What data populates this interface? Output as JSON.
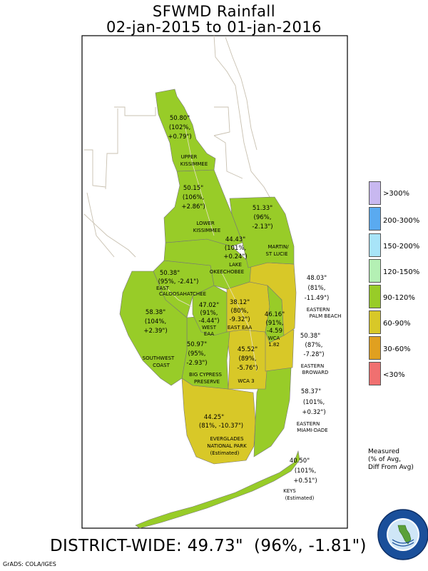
{
  "title": "SFWMD Rainfall",
  "subtitle": "02-jan-2015 to 01-jan-2016",
  "colors": {
    "gt300": "#c8b8f0",
    "r200_300": "#5aaaf0",
    "r150_200": "#a8e4f8",
    "r120_150": "#b4f0b4",
    "r90_120": "#98cc28",
    "r60_90": "#d8c828",
    "r30_60": "#e0a020",
    "lt30": "#f07070",
    "land": "#ffffff",
    "outline": "#b8b0a0"
  },
  "legend": [
    {
      "label": ">300%",
      "color": "#c8b8f0"
    },
    {
      "label": "200-300%",
      "color": "#5aaaf0"
    },
    {
      "label": "150-200%",
      "color": "#a8e4f8"
    },
    {
      "label": "120-150%",
      "color": "#b4f0b4"
    },
    {
      "label": "90-120%",
      "color": "#98cc28"
    },
    {
      "label": "60-90%",
      "color": "#d8c828"
    },
    {
      "label": "30-60%",
      "color": "#e0a020"
    },
    {
      "label": "<30%",
      "color": "#f07070"
    }
  ],
  "measured_note": {
    "line1": "Measured",
    "line2": "(% of Avg,",
    "line3": "Diff From Avg)"
  },
  "regions": {
    "upper_kissimmee": {
      "value": "50.80\"",
      "pct": "(102%,",
      "diff": "+0.79\")",
      "name1": "UPPER",
      "name2": "KISSIMMEE"
    },
    "lower_kissimmee": {
      "value": "50.15\"",
      "pct": "(106%,",
      "diff": "+2.86\")",
      "name1": "LOWER",
      "name2": "KISSIMMEE"
    },
    "martin_st_lucie": {
      "value": "51.33\"",
      "pct": "(96%,",
      "diff": "-2.13\")",
      "name1": "MARTIN/",
      "name2": "ST LUCIE"
    },
    "lake_okeechobee": {
      "value": "44.43\"",
      "pct": "(101%,",
      "diff": "+0.24\")",
      "name1": "LAKE",
      "name2": "OKEECHOBEE"
    },
    "east_caloosahatchee": {
      "value": "50.38\"",
      "pct": "(95%, -2.41\")",
      "name1": "EAST",
      "name2": "CALOOSAHATCHEE"
    },
    "west_eaa": {
      "value": "47.02\"",
      "pct": "(91%,",
      "diff": "-4.44\")",
      "name1": "WEST",
      "name2": "EAA"
    },
    "east_eaa": {
      "value": "38.12\"",
      "pct": "(80%,",
      "diff": "-9.32\")",
      "name1": "EAST EAA"
    },
    "wca1": {
      "value": "46.16\"",
      "pct": "(91%,",
      "diff": "-4.59",
      "name1": "WCA",
      "name2": "1.82"
    },
    "eastern_palm_beach": {
      "value": "48.03\"",
      "pct": "(81%,",
      "diff": "-11.49\")",
      "name1": "EASTERN",
      "name2": "PALM BEACH"
    },
    "southwest_coast": {
      "value": "58.38\"",
      "pct": "(104%,",
      "diff": "+2.39\")",
      "name1": "SOUTHWEST",
      "name2": "COAST"
    },
    "big_cypress": {
      "value": "50.97\"",
      "pct": "(95%,",
      "diff": "-2.93\")",
      "name1": "BIG CYPRESS",
      "name2": "PRESERVE"
    },
    "wca3": {
      "value": "45.52\"",
      "pct": "(89%,",
      "diff": "-5.76\")",
      "name1": "WCA 3"
    },
    "eastern_broward": {
      "value": "50.38\"",
      "pct": "(87%,",
      "diff": "-7.28\")",
      "name1": "EASTERN",
      "name2": "BROWARD"
    },
    "eastern_miami_dade": {
      "value": "58.37\"",
      "pct": "(101%,",
      "diff": "+0.32\")",
      "name1": "EASTERN",
      "name2": "MIAMI-DADE"
    },
    "everglades_np": {
      "value": "44.25\"",
      "pct": "(81%, -10.37\")",
      "name1": "EVERGLADES",
      "name2": "NATIONAL PARK",
      "name3": "(Estimated)"
    },
    "keys": {
      "value": "40.50\"",
      "pct": "(101%,",
      "diff": "+0.51\")",
      "name1": "KEYS",
      "name2": "(Estimated)"
    }
  },
  "district_wide": "DISTRICT-WIDE: 49.73\"  (96%, -1.81\")",
  "credit": "GrADS: COLA/IGES",
  "seal_icon": "sfwmd-seal-icon"
}
